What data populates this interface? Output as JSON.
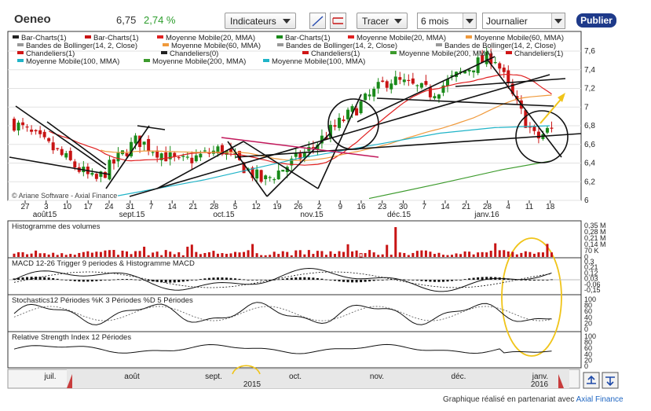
{
  "header": {
    "ticker": "Oeneo",
    "price": "6,75",
    "change": "2,74 %",
    "indicators_label": "Indicateurs",
    "draw_label": "Tracer",
    "period_value": "6 mois",
    "interval_value": "Journalier",
    "publish_label": "Publier"
  },
  "legend": [
    {
      "text": "Bar-Charts(1)",
      "color": "#222222"
    },
    {
      "text": "Bar-Charts(1)",
      "color": "#c81414"
    },
    {
      "text": "Moyenne Mobile(20, MMA)",
      "color": "#e02020"
    },
    {
      "text": "Bar-Charts(1)",
      "color": "#1a8a1a"
    },
    {
      "text": "Moyenne Mobile(20, MMA)",
      "color": "#e02020"
    },
    {
      "text": "Moyenne Mobile(60, MMA)",
      "color": "#f09a3c"
    },
    {
      "text": "Bandes de Bollinger(14, 2, Close)",
      "color": "#999999"
    },
    {
      "text": "Moyenne Mobile(60, MMA)",
      "color": "#f09a3c"
    },
    {
      "text": "Bandes de Bollinger(14, 2, Close)",
      "color": "#999999"
    },
    {
      "text": "Bandes de Bollinger(14, 2, Close)",
      "color": "#999999"
    },
    {
      "text": "Chandeliers(1)",
      "color": "#d01515"
    },
    {
      "text": "Chandeliers(0)",
      "color": "#222222"
    },
    {
      "text": "Chandeliers(1)",
      "color": "#d01515"
    },
    {
      "text": "Moyenne Mobile(200, MMA)",
      "color": "#3d9b2d"
    },
    {
      "text": "Chandeliers(1)",
      "color": "#d01515"
    },
    {
      "text": "Moyenne Mobile(100, MMA)",
      "color": "#20b4c8"
    },
    {
      "text": "Moyenne Mobile(200, MMA)",
      "color": "#3d9b2d"
    },
    {
      "text": "Moyenne Mobile(100, MMA)",
      "color": "#20b4c8"
    }
  ],
  "watermark": "© Ariane Software - Axial Finance",
  "panels": {
    "volume": "Histogramme des volumes",
    "macd": "MACD 12-26   Trigger 9 periodes & Histogramme MACD",
    "stoch": "Stochastics12 Périodes   %K 3 Périodes   %D 5 Périodes",
    "rsi": "Relative Strength Index 12 Périodes"
  },
  "y_labels": {
    "price": [
      "7,6",
      "7,4",
      "7,2",
      "7",
      "6,8",
      "6,6",
      "6,4",
      "6,2",
      "6"
    ],
    "volume": [
      "0,35 M",
      "0,28 M",
      "0,21 M",
      "0,14 M",
      "70 K",
      "0"
    ],
    "macd": [
      "0,3",
      "0,21",
      "0,12",
      "0,03",
      "-0,06",
      "-0,15"
    ],
    "stoch": [
      "100",
      "80",
      "60",
      "40",
      "20",
      "0"
    ],
    "rsi": [
      "100",
      "80",
      "60",
      "40",
      "20",
      "0"
    ]
  },
  "date_labels": {
    "days": [
      "27",
      "3",
      "10",
      "17",
      "24",
      "31",
      "7",
      "14",
      "21",
      "28",
      "5",
      "12",
      "19",
      "26",
      "2",
      "9",
      "16",
      "23",
      "30",
      "7",
      "14",
      "21",
      "28",
      "4",
      "11",
      "18"
    ],
    "months": [
      "août15",
      "sept.15",
      "oct.15",
      "nov.15",
      "déc.15",
      "janv.16"
    ]
  },
  "navigator": {
    "months": [
      "juil.",
      "août",
      "sept.",
      "oct.",
      "nov.",
      "déc.",
      "janv."
    ],
    "years": [
      "2015",
      "2016"
    ]
  },
  "footer": {
    "text": "Graphique réalisé en partenariat avec",
    "brand": "Axial Finance"
  },
  "colors": {
    "up": "#1a8a1a",
    "down": "#c81414",
    "ma20": "#e02020",
    "ma60": "#f09a3c",
    "ma100": "#20b4c8",
    "ma200": "#3d9b2d",
    "highlight": "#f0c419",
    "publish": "#1e3a8a"
  },
  "chart_data": {
    "type": "candlestick",
    "title": "Oeneo",
    "ylim": [
      6.0,
      7.7
    ],
    "x_start": "2015-07-27",
    "x_end": "2016-01-22",
    "close_approx": [
      {
        "date": "2015-07-27",
        "value": 6.85
      },
      {
        "date": "2015-08-10",
        "value": 6.55
      },
      {
        "date": "2015-08-24",
        "value": 6.2
      },
      {
        "date": "2015-09-07",
        "value": 6.65
      },
      {
        "date": "2015-09-21",
        "value": 6.4
      },
      {
        "date": "2015-10-05",
        "value": 6.55
      },
      {
        "date": "2015-10-19",
        "value": 6.2
      },
      {
        "date": "2015-11-02",
        "value": 6.5
      },
      {
        "date": "2015-11-16",
        "value": 6.9
      },
      {
        "date": "2015-11-30",
        "value": 7.3
      },
      {
        "date": "2015-12-14",
        "value": 7.15
      },
      {
        "date": "2015-12-28",
        "value": 7.45
      },
      {
        "date": "2016-01-04",
        "value": 7.55
      },
      {
        "date": "2016-01-11",
        "value": 7.05
      },
      {
        "date": "2016-01-18",
        "value": 6.65
      },
      {
        "date": "2016-01-22",
        "value": 6.75
      }
    ]
  }
}
